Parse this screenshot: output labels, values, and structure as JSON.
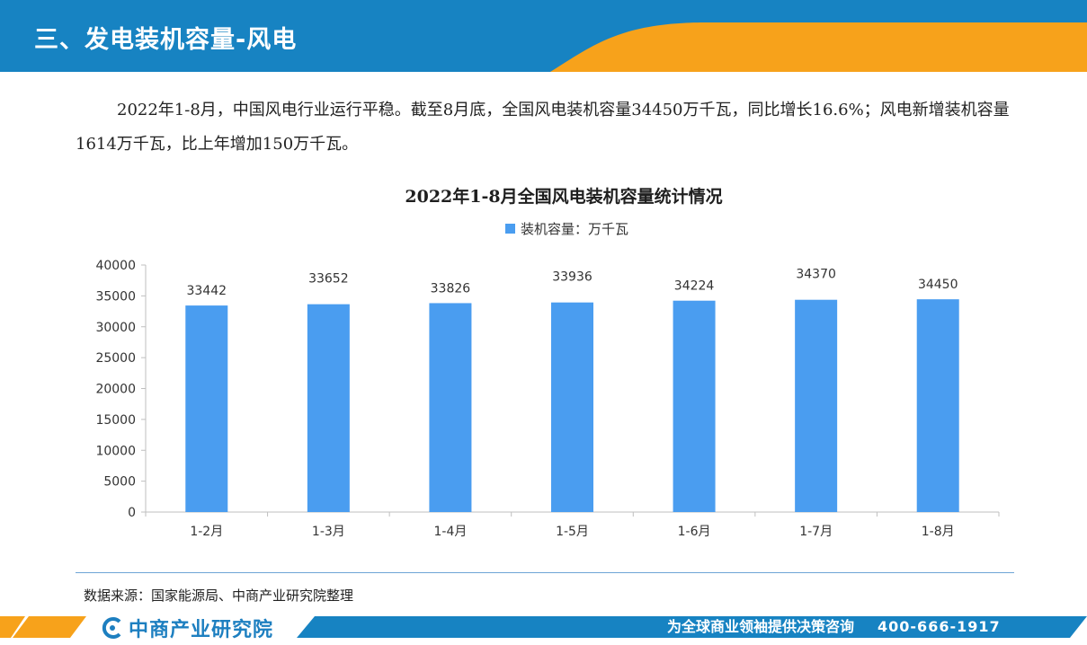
{
  "header": {
    "title": "三、发电装机容量-风电"
  },
  "intro": {
    "text": "2022年1-8月，中国风电行业运行平稳。截至8月底，全国风电装机容量34450万千瓦，同比增长16.6%；风电新增装机容量1614万千瓦，比上年增加150万千瓦。"
  },
  "chart_data": {
    "type": "bar",
    "title": "2022年1-8月全国风电装机容量统计情况",
    "categories": [
      "1-2月",
      "1-3月",
      "1-4月",
      "1-5月",
      "1-6月",
      "1-7月",
      "1-8月"
    ],
    "series": [
      {
        "name": "装机容量：万千瓦",
        "values": [
          33442,
          33652,
          33826,
          33936,
          34224,
          34370,
          34450
        ]
      }
    ],
    "ylim": [
      0,
      40000
    ],
    "yticks": [
      0,
      5000,
      10000,
      15000,
      20000,
      25000,
      30000,
      35000,
      40000
    ],
    "xlabel": "",
    "ylabel": "",
    "legend": "top-center",
    "grid": false,
    "bar_color": "#4a9df0"
  },
  "source": {
    "text": "数据来源：国家能源局、中商产业研究院整理"
  },
  "footer": {
    "brand": "中商产业研究院",
    "slogan": "为全球商业领袖提供决策咨询",
    "phone": "400-666-1917"
  },
  "colors": {
    "header_blue": "#1783c2",
    "accent_orange": "#f7a21b",
    "bar_blue": "#4a9df0"
  }
}
